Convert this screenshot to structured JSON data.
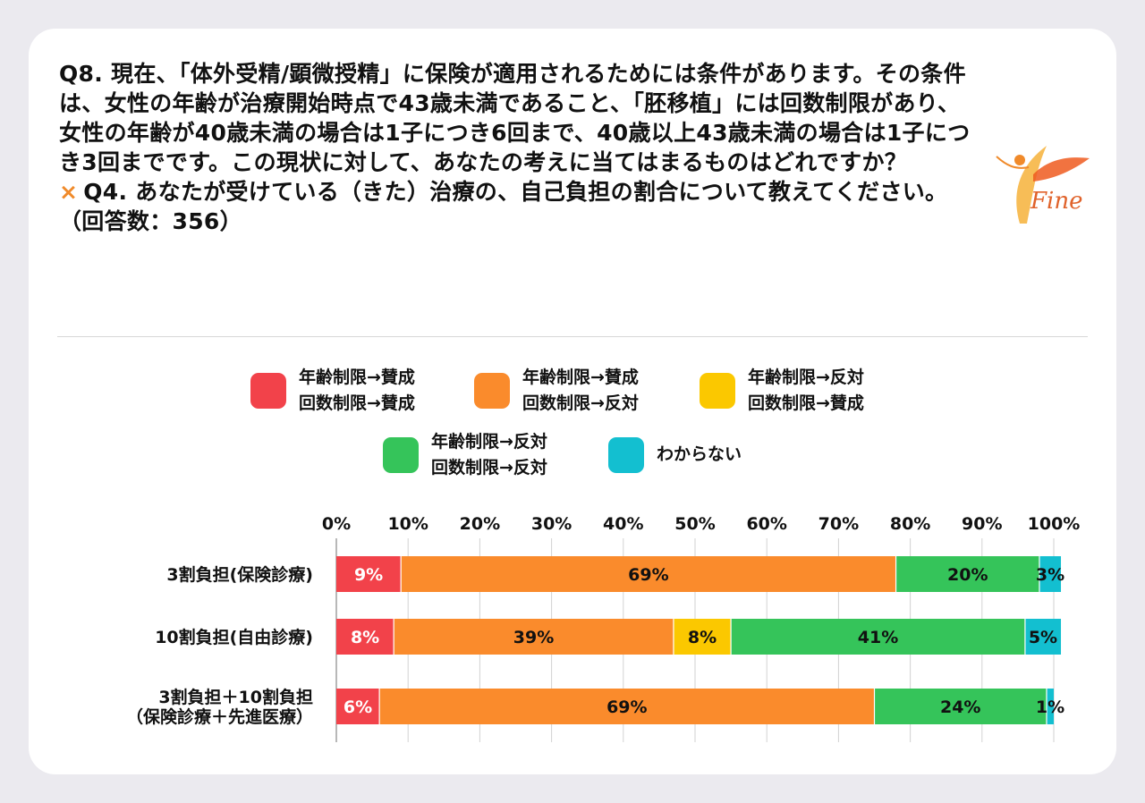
{
  "question": {
    "main": "Q8. 現在、「体外受精/顕微授精」に保険が適用されるためには条件があります。その条件は、女性の年齢が治療開始時点で43歳未満であること、「胚移植」には回数制限があり、女性の年齢が40歳未満の場合は1子につき6回まで、40歳以上43歳未満の場合は1子につき3回までです。この現状に対して、あなたの考えに当てはまるものはどれですか？",
    "cross_mark": "×",
    "cross": "Q4. あなたが受けている（きた）治療の、自己負担の割合について教えてください。（回答数：356）"
  },
  "logo": {
    "text": "Fine"
  },
  "legend": [
    {
      "line1": "年齢制限→賛成",
      "line2": "回数制限→賛成",
      "color": "#f2424a"
    },
    {
      "line1": "年齢制限→賛成",
      "line2": "回数制限→反対",
      "color": "#fa8b2c"
    },
    {
      "line1": "年齢制限→反対",
      "line2": "回数制限→賛成",
      "color": "#fbc800"
    },
    {
      "line1": "年齢制限→反対",
      "line2": "回数制限→反対",
      "color": "#35c45a"
    },
    {
      "line1": "わからない",
      "line2": "",
      "color": "#13bfd0"
    }
  ],
  "chart_data": {
    "type": "bar",
    "orientation": "horizontal",
    "stacked": true,
    "xlim": [
      0,
      100
    ],
    "xticks": [
      "0%",
      "10%",
      "20%",
      "30%",
      "40%",
      "50%",
      "60%",
      "70%",
      "80%",
      "90%",
      "100%"
    ],
    "categories": [
      [
        "3割負担(保険診療)"
      ],
      [
        "10割負担(自由診療)"
      ],
      [
        "3割負担＋10割負担",
        "（保険診療＋先進医療）"
      ]
    ],
    "series": [
      {
        "name": "年齢制限→賛成 回数制限→賛成",
        "color": "#f2424a",
        "values": [
          9,
          8,
          6
        ],
        "labels": [
          "9%",
          "8%",
          "6%"
        ]
      },
      {
        "name": "年齢制限→賛成 回数制限→反対",
        "color": "#fa8b2c",
        "values": [
          69,
          39,
          69
        ],
        "labels": [
          "69%",
          "39%",
          "69%"
        ]
      },
      {
        "name": "年齢制限→反対 回数制限→賛成",
        "color": "#fbc800",
        "values": [
          0,
          8,
          0
        ],
        "labels": [
          "",
          "8%",
          ""
        ]
      },
      {
        "name": "年齢制限→反対 回数制限→反対",
        "color": "#35c45a",
        "values": [
          20,
          41,
          24
        ],
        "labels": [
          "20%",
          "41%",
          "24%"
        ]
      },
      {
        "name": "わからない",
        "color": "#13bfd0",
        "values": [
          3,
          5,
          1
        ],
        "labels": [
          "3%",
          "5%",
          "1%"
        ]
      }
    ]
  }
}
